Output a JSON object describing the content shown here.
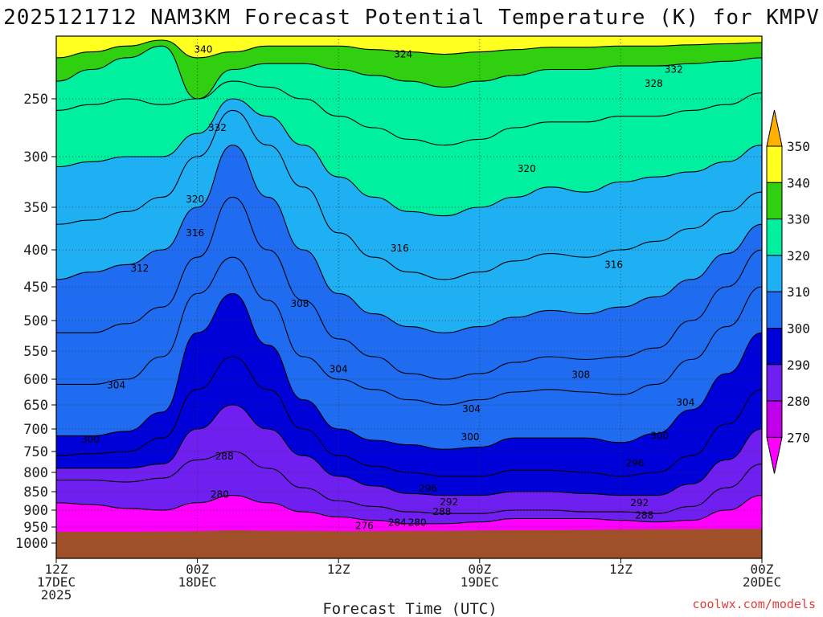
{
  "page": {
    "title": "2025121712 NAM3KM Forecast Potential Temperature (K) for KMPV",
    "credit": "coolwx.com/models"
  },
  "chart_data": {
    "type": "heatmap",
    "title": "2025121712 NAM3KM Forecast Potential Temperature (K) for KMPV",
    "xlabel": "Forecast Time (UTC)",
    "ylabel": "",
    "y_scale": "pressure (hPa), decreasing upward",
    "ylim": [
      1000,
      200
    ],
    "grid": true,
    "x_ticks": [
      {
        "hour": 0,
        "line1": "12Z",
        "line2": "17DEC",
        "line3": "2025"
      },
      {
        "hour": 12,
        "line1": "00Z",
        "line2": "18DEC",
        "line3": ""
      },
      {
        "hour": 24,
        "line1": "12Z",
        "line2": "",
        "line3": ""
      },
      {
        "hour": 36,
        "line1": "00Z",
        "line2": "19DEC",
        "line3": ""
      },
      {
        "hour": 48,
        "line1": "12Z",
        "line2": "",
        "line3": ""
      },
      {
        "hour": 60,
        "line1": "00Z",
        "line2": "20DEC",
        "line3": ""
      }
    ],
    "y_ticks": [
      250,
      300,
      350,
      400,
      450,
      500,
      550,
      600,
      650,
      700,
      750,
      800,
      850,
      900,
      950,
      1000
    ],
    "time_hours": [
      0,
      3,
      6,
      9,
      12,
      15,
      18,
      21,
      24,
      27,
      30,
      33,
      36,
      39,
      42,
      45,
      48,
      51,
      54,
      57,
      60
    ],
    "isentropes": [
      {
        "theta": 280,
        "pressure": [
          880,
          885,
          895,
          900,
          880,
          860,
          880,
          905,
          920,
          930,
          940,
          940,
          935,
          925,
          925,
          925,
          930,
          935,
          930,
          900,
          860
        ]
      },
      {
        "theta": 288,
        "pressure": [
          820,
          820,
          825,
          815,
          770,
          750,
          790,
          840,
          875,
          890,
          905,
          910,
          910,
          900,
          900,
          905,
          905,
          910,
          890,
          840,
          780
        ]
      },
      {
        "theta": 292,
        "pressure": [
          790,
          790,
          790,
          780,
          700,
          650,
          700,
          760,
          810,
          835,
          855,
          860,
          860,
          850,
          850,
          855,
          860,
          860,
          830,
          770,
          700
        ]
      },
      {
        "theta": 296,
        "pressure": [
          760,
          755,
          750,
          720,
          620,
          560,
          620,
          700,
          760,
          785,
          800,
          810,
          810,
          795,
          795,
          800,
          810,
          800,
          760,
          690,
          620
        ]
      },
      {
        "theta": 300,
        "pressure": [
          715,
          715,
          705,
          665,
          520,
          460,
          540,
          640,
          700,
          725,
          735,
          745,
          740,
          720,
          720,
          720,
          730,
          710,
          660,
          590,
          520
        ]
      },
      {
        "theta": 304,
        "pressure": [
          610,
          610,
          600,
          560,
          460,
          410,
          470,
          560,
          600,
          620,
          640,
          650,
          640,
          625,
          620,
          625,
          630,
          610,
          565,
          510,
          450
        ]
      },
      {
        "theta": 308,
        "pressure": [
          520,
          520,
          505,
          480,
          410,
          340,
          400,
          470,
          530,
          560,
          590,
          600,
          590,
          570,
          560,
          565,
          560,
          545,
          500,
          450,
          400
        ]
      },
      {
        "theta": 312,
        "pressure": [
          440,
          430,
          420,
          400,
          350,
          290,
          340,
          400,
          460,
          490,
          510,
          520,
          510,
          495,
          485,
          490,
          480,
          465,
          440,
          405,
          370
        ]
      },
      {
        "theta": 316,
        "pressure": [
          370,
          365,
          355,
          340,
          300,
          260,
          290,
          330,
          380,
          410,
          430,
          440,
          430,
          415,
          405,
          410,
          400,
          390,
          375,
          355,
          335
        ]
      },
      {
        "theta": 320,
        "pressure": [
          310,
          305,
          300,
          300,
          280,
          250,
          265,
          290,
          320,
          340,
          355,
          360,
          350,
          340,
          330,
          335,
          325,
          320,
          315,
          305,
          290
        ]
      },
      {
        "theta": 324,
        "pressure": [
          260,
          255,
          250,
          255,
          250,
          235,
          240,
          250,
          265,
          275,
          285,
          290,
          285,
          275,
          270,
          270,
          265,
          265,
          260,
          255,
          245
        ]
      },
      {
        "theta": 332,
        "pressure": [
          235,
          225,
          215,
          205,
          250,
          225,
          220,
          220,
          225,
          230,
          235,
          240,
          235,
          230,
          225,
          225,
          222,
          222,
          220,
          218,
          215
        ]
      },
      {
        "theta": 340,
        "pressure": [
          215,
          210,
          205,
          200,
          215,
          210,
          205,
          205,
          205,
          208,
          210,
          212,
          210,
          208,
          206,
          206,
          205,
          205,
          204,
          203,
          202
        ]
      }
    ],
    "contour_labels": [
      {
        "text": "340",
        "hour": 12.5,
        "pressure": 208
      },
      {
        "text": "324",
        "hour": 29.5,
        "pressure": 212
      },
      {
        "text": "332",
        "hour": 52.5,
        "pressure": 225
      },
      {
        "text": "328",
        "hour": 50.8,
        "pressure": 237
      },
      {
        "text": "332",
        "hour": 13.7,
        "pressure": 275
      },
      {
        "text": "320",
        "hour": 40,
        "pressure": 312
      },
      {
        "text": "320",
        "hour": 11.8,
        "pressure": 342
      },
      {
        "text": "316",
        "hour": 11.8,
        "pressure": 380
      },
      {
        "text": "316",
        "hour": 29.2,
        "pressure": 398
      },
      {
        "text": "316",
        "hour": 47.4,
        "pressure": 420
      },
      {
        "text": "312",
        "hour": 7.1,
        "pressure": 425
      },
      {
        "text": "308",
        "hour": 20.7,
        "pressure": 475
      },
      {
        "text": "304",
        "hour": 24,
        "pressure": 582
      },
      {
        "text": "308",
        "hour": 44.6,
        "pressure": 592
      },
      {
        "text": "304",
        "hour": 5.1,
        "pressure": 612
      },
      {
        "text": "304",
        "hour": 53.5,
        "pressure": 645
      },
      {
        "text": "304",
        "hour": 35.3,
        "pressure": 658
      },
      {
        "text": "300",
        "hour": 51.3,
        "pressure": 715
      },
      {
        "text": "300",
        "hour": 2.9,
        "pressure": 723
      },
      {
        "text": "300",
        "hour": 35.2,
        "pressure": 718
      },
      {
        "text": "288",
        "hour": 14.3,
        "pressure": 762
      },
      {
        "text": "296",
        "hour": 49.2,
        "pressure": 778
      },
      {
        "text": "296",
        "hour": 31.6,
        "pressure": 842
      },
      {
        "text": "280",
        "hour": 13.9,
        "pressure": 858
      },
      {
        "text": "292",
        "hour": 33.4,
        "pressure": 878
      },
      {
        "text": "292",
        "hour": 49.6,
        "pressure": 880
      },
      {
        "text": "288",
        "hour": 32.8,
        "pressure": 905
      },
      {
        "text": "288",
        "hour": 50,
        "pressure": 915
      },
      {
        "text": "284",
        "hour": 29,
        "pressure": 937
      },
      {
        "text": "280",
        "hour": 30.7,
        "pressure": 937
      },
      {
        "text": "276",
        "hour": 26.2,
        "pressure": 947
      }
    ],
    "ground_pressure": [
      965,
      965,
      965,
      964,
      963,
      960,
      962,
      962,
      963,
      963,
      962,
      962,
      961,
      960,
      960,
      959,
      958,
      957,
      957,
      956,
      956
    ],
    "colorbar": {
      "levels": [
        270,
        280,
        290,
        300,
        310,
        320,
        330,
        340,
        350
      ],
      "labels": [
        "270",
        "280",
        "290",
        "300",
        "310",
        "320",
        "330",
        "340",
        "350"
      ],
      "colors": [
        "#ff00ff",
        "#c000e8",
        "#6f20f0",
        "#0000d8",
        "#1f6cf0",
        "#1fb0f4",
        "#00f0a0",
        "#30d010",
        "#ffff20",
        "#ffb000"
      ]
    },
    "ground_color": "#a05028"
  }
}
